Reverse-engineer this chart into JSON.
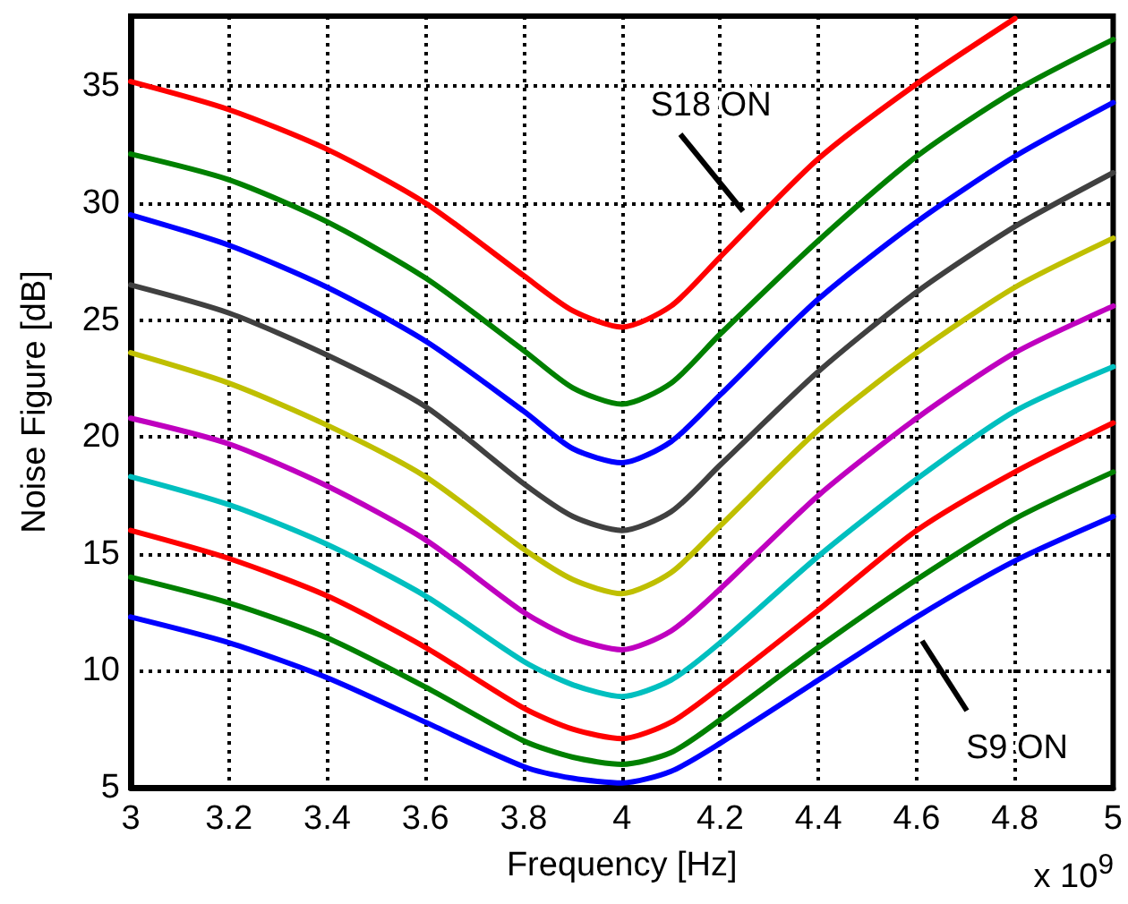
{
  "chart_data": {
    "type": "line",
    "xlabel": "Frequency [Hz]",
    "ylabel": "Noise Figure [dB]",
    "x": [
      3,
      3.2,
      3.4,
      3.6,
      3.8,
      3.9,
      4,
      4.1,
      4.2,
      4.4,
      4.6,
      4.8,
      5
    ],
    "series": [
      {
        "color": "#ff0000",
        "values": [
          35.2,
          34.0,
          32.3,
          30.0,
          26.9,
          25.4,
          24.7,
          25.6,
          27.7,
          31.9,
          35.1,
          37.9,
          null
        ]
      },
      {
        "color": "#008000",
        "values": [
          32.1,
          31.0,
          29.2,
          26.8,
          23.7,
          22.1,
          21.4,
          22.3,
          24.4,
          28.4,
          32.0,
          34.8,
          37.0
        ]
      },
      {
        "color": "#0000ff",
        "values": [
          29.5,
          28.2,
          26.4,
          24.1,
          21.1,
          19.5,
          18.9,
          19.8,
          21.8,
          25.9,
          29.2,
          32.0,
          34.3
        ]
      },
      {
        "color": "#404040",
        "values": [
          26.5,
          25.3,
          23.5,
          21.3,
          18.0,
          16.6,
          16.0,
          16.8,
          18.8,
          22.8,
          26.2,
          29.0,
          31.3
        ]
      },
      {
        "color": "#bfbf00",
        "values": [
          23.6,
          22.3,
          20.5,
          18.3,
          15.2,
          13.9,
          13.3,
          14.2,
          16.2,
          20.3,
          23.6,
          26.4,
          28.5
        ]
      },
      {
        "color": "#bf00bf",
        "values": [
          20.8,
          19.7,
          17.9,
          15.6,
          12.5,
          11.4,
          10.9,
          11.7,
          13.5,
          17.5,
          20.8,
          23.6,
          25.6
        ]
      },
      {
        "color": "#00bfbf",
        "values": [
          18.3,
          17.1,
          15.4,
          13.2,
          10.4,
          9.4,
          8.9,
          9.6,
          11.2,
          14.9,
          18.2,
          21.1,
          23.0
        ]
      },
      {
        "color": "#ff0000",
        "values": [
          16.0,
          14.8,
          13.2,
          11.0,
          8.4,
          7.5,
          7.1,
          7.8,
          9.3,
          12.6,
          16.0,
          18.5,
          20.6
        ]
      },
      {
        "color": "#008000",
        "values": [
          14.0,
          12.9,
          11.4,
          9.3,
          7.0,
          6.3,
          6.0,
          6.5,
          7.9,
          11.0,
          13.9,
          16.5,
          18.5
        ]
      },
      {
        "color": "#0000ff",
        "values": [
          12.3,
          11.2,
          9.7,
          7.8,
          5.9,
          5.4,
          5.2,
          5.7,
          6.9,
          9.6,
          12.3,
          14.7,
          16.6
        ]
      }
    ],
    "xlim": [
      3,
      5
    ],
    "xticks": [
      3,
      3.2,
      3.4,
      3.6,
      3.8,
      4,
      4.2,
      4.4,
      4.6,
      4.8,
      5
    ],
    "ylim": [
      5,
      38
    ],
    "yticks": [
      5,
      10,
      15,
      20,
      25,
      30,
      35
    ],
    "grid": true,
    "annotations": [
      "S18 ON",
      "S9 ON",
      "x 10$^{9}$"
    ]
  }
}
